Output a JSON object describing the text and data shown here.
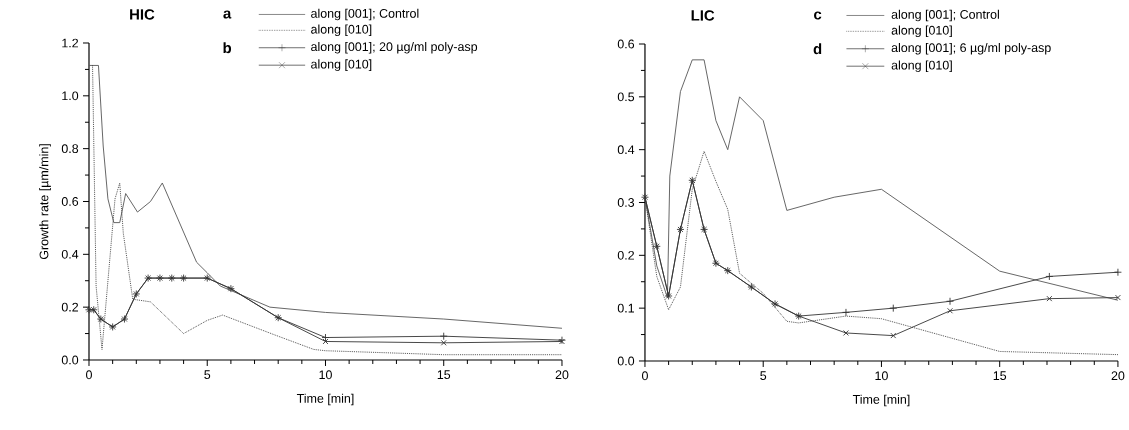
{
  "chart_data": [
    {
      "type": "line",
      "title": "HIC",
      "xlabel": "Time [min]",
      "ylabel": "Growth rate [µm/min]",
      "annotations": [
        "a",
        "b"
      ],
      "legend": "top",
      "xlim": [
        0,
        20
      ],
      "xticks": [
        0,
        5,
        10,
        15,
        20
      ],
      "ylim": [
        0,
        1.2
      ],
      "yticks": [
        {
          "value": 0,
          "label": "0.0"
        },
        {
          "value": 0.2,
          "label": "0.2"
        },
        {
          "value": 0.4,
          "label": "0.4"
        },
        {
          "value": 0.6,
          "label": "0.6"
        },
        {
          "value": 0.8,
          "label": "0.8"
        },
        {
          "value": 1.0,
          "label": "1.0"
        },
        {
          "value": 1.2,
          "label": "1.2"
        }
      ],
      "series": [
        {
          "name": "along [001]; Control",
          "color": "#555555",
          "line_style": "solid",
          "marker": "none",
          "x": [
            0,
            0.4,
            0.6,
            0.8,
            1.05,
            1.3,
            1.55,
            2.05,
            2.6,
            3.1,
            4.55,
            5,
            5.55,
            7.65,
            10,
            15,
            20
          ],
          "values": [
            1.115,
            1.115,
            0.81,
            0.61,
            0.52,
            0.52,
            0.63,
            0.56,
            0.6,
            0.67,
            0.37,
            0.33,
            0.28,
            0.2,
            0.18,
            0.155,
            0.12
          ]
        },
        {
          "name": "along [010]",
          "color": "#333333",
          "line_style": "dotted",
          "marker": "none",
          "x": [
            0.15,
            0.3,
            0.55,
            1.1,
            1.3,
            1.45,
            1.85,
            2.6,
            3.65,
            4,
            5,
            5.65,
            7.85,
            9.5,
            10,
            15,
            20
          ],
          "values": [
            1.115,
            0.28,
            0.04,
            0.61,
            0.67,
            0.48,
            0.23,
            0.22,
            0.13,
            0.1,
            0.15,
            0.17,
            0.095,
            0.04,
            0.035,
            0.02,
            0.02
          ]
        },
        {
          "name": "along [001]; 20 µg/ml poly-asp",
          "color": "#333333",
          "line_style": "solid",
          "marker": "plus",
          "x": [
            0,
            0.2,
            0.5,
            1,
            1.5,
            2,
            2.5,
            3,
            3.5,
            4,
            5,
            6,
            8,
            10,
            15,
            20
          ],
          "values": [
            0.19,
            0.19,
            0.155,
            0.125,
            0.155,
            0.25,
            0.31,
            0.31,
            0.31,
            0.31,
            0.31,
            0.27,
            0.16,
            0.085,
            0.09,
            0.075
          ]
        },
        {
          "name": "along [010]",
          "color": "#333333",
          "line_style": "solid",
          "marker": "cross",
          "x": [
            0,
            0.2,
            0.5,
            1,
            1.5,
            2,
            2.5,
            3,
            3.5,
            4,
            5,
            6,
            8,
            10,
            15,
            20
          ],
          "values": [
            0.19,
            0.19,
            0.155,
            0.125,
            0.155,
            0.25,
            0.31,
            0.31,
            0.31,
            0.31,
            0.31,
            0.27,
            0.16,
            0.07,
            0.065,
            0.07
          ]
        }
      ]
    },
    {
      "type": "line",
      "title": "LIC",
      "xlabel": "Time [min]",
      "annotations": [
        "c",
        "d"
      ],
      "legend": "top",
      "xlim": [
        0,
        20
      ],
      "xticks": [
        0,
        5,
        10,
        15,
        20
      ],
      "ylim": [
        0,
        0.6
      ],
      "yticks": [
        {
          "value": 0,
          "label": "0.0"
        },
        {
          "value": 0.1,
          "label": "0.1"
        },
        {
          "value": 0.2,
          "label": "0.2"
        },
        {
          "value": 0.3,
          "label": "0.3"
        },
        {
          "value": 0.4,
          "label": "0.4"
        },
        {
          "value": 0.5,
          "label": "0.5"
        },
        {
          "value": 0.6,
          "label": "0.6"
        }
      ],
      "series": [
        {
          "name": "along [001]; Control",
          "color": "#555555",
          "line_style": "solid",
          "marker": "none",
          "x": [
            0,
            0.5,
            0.95,
            1.05,
            1.5,
            2,
            2.5,
            3,
            3.5,
            4,
            5,
            6,
            8,
            10,
            15,
            20
          ],
          "values": [
            0.31,
            0.18,
            0.12,
            0.35,
            0.51,
            0.57,
            0.57,
            0.455,
            0.4,
            0.5,
            0.455,
            0.285,
            0.31,
            0.325,
            0.17,
            0.115
          ]
        },
        {
          "name": "along [010]",
          "color": "#333333",
          "line_style": "dotted",
          "marker": "none",
          "x": [
            0,
            0.5,
            1,
            1.5,
            2,
            2.5,
            3,
            3.5,
            4,
            5,
            6,
            6.5,
            8.5,
            10,
            15,
            20
          ],
          "values": [
            0.31,
            0.16,
            0.097,
            0.14,
            0.325,
            0.397,
            0.34,
            0.287,
            0.166,
            0.128,
            0.075,
            0.072,
            0.085,
            0.08,
            0.018,
            0.012
          ]
        },
        {
          "name": "along [001]; 6 µg/ml poly-asp",
          "color": "#333333",
          "line_style": "solid",
          "marker": "plus",
          "x": [
            0,
            0.5,
            1,
            1.5,
            2,
            2.5,
            3,
            3.5,
            4.5,
            5.5,
            6.5,
            8.5,
            10.5,
            12.9,
            17.1,
            20
          ],
          "values": [
            0.31,
            0.217,
            0.123,
            0.249,
            0.342,
            0.249,
            0.185,
            0.171,
            0.14,
            0.108,
            0.085,
            0.092,
            0.1,
            0.113,
            0.16,
            0.168
          ]
        },
        {
          "name": "along [010]",
          "color": "#333333",
          "line_style": "solid",
          "marker": "cross",
          "x": [
            0,
            0.5,
            1,
            1.5,
            2,
            2.5,
            3,
            3.5,
            4.5,
            5.5,
            6.5,
            8.5,
            10.5,
            12.9,
            17.1,
            20
          ],
          "values": [
            0.31,
            0.217,
            0.123,
            0.249,
            0.342,
            0.249,
            0.185,
            0.171,
            0.14,
            0.108,
            0.085,
            0.053,
            0.048,
            0.095,
            0.118,
            0.12
          ]
        }
      ]
    }
  ]
}
